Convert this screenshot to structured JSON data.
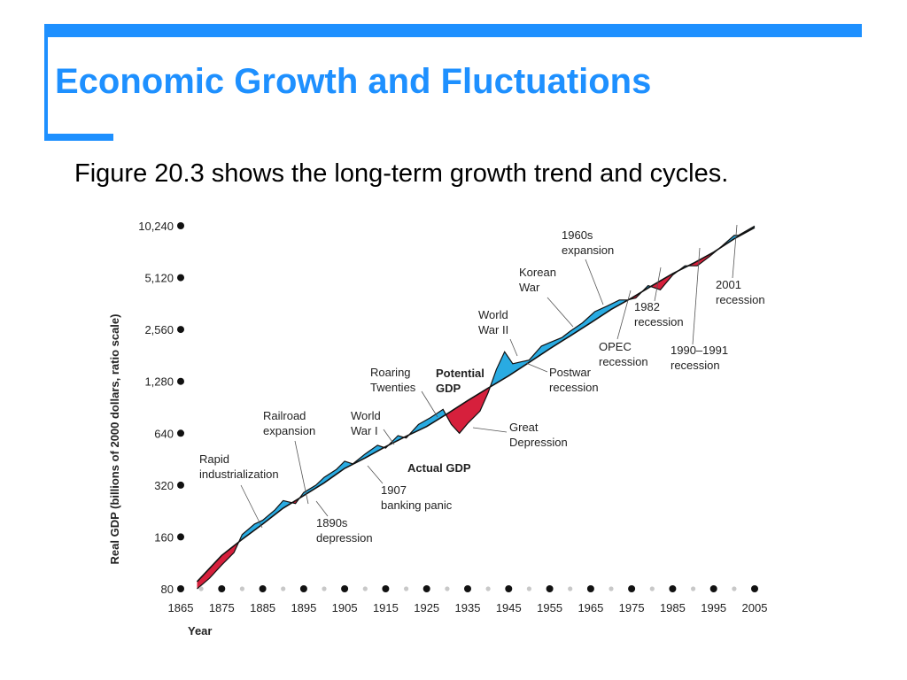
{
  "slide": {
    "title": "Economic Growth and Fluctuations",
    "subtitle": "Figure 20.3 shows the long-term growth trend and cycles.",
    "accent_color": "#1e90ff"
  },
  "chart_data": {
    "type": "line",
    "title": "",
    "xlabel": "Year",
    "ylabel": "Real GDP (billions of 2000 dollars, ratio scale)",
    "y_scale": "log2",
    "ylim": [
      80,
      10240
    ],
    "xlim": [
      1865,
      2005
    ],
    "y_ticks": [
      80,
      160,
      320,
      640,
      1280,
      2560,
      5120,
      10240
    ],
    "y_tick_labels": [
      "80",
      "160",
      "320",
      "640",
      "1,280",
      "2,560",
      "5,120",
      "10,240"
    ],
    "x_ticks": [
      1865,
      1875,
      1885,
      1895,
      1905,
      1915,
      1925,
      1935,
      1945,
      1955,
      1965,
      1975,
      1985,
      1995,
      2005
    ],
    "x_tick_labels": [
      "1865",
      "1875",
      "1885",
      "1895",
      "1905",
      "1915",
      "1925",
      "1935",
      "1945",
      "1955",
      "1965",
      "1975",
      "1985",
      "1995",
      "2005"
    ],
    "grid": false,
    "colors": {
      "potential": "#111111",
      "actual": "#111111",
      "expansion_fill": "#29abe2",
      "recession_fill": "#d6203c"
    },
    "series": [
      {
        "name": "Potential GDP",
        "x": [
          1869,
          1875,
          1880,
          1885,
          1890,
          1895,
          1900,
          1905,
          1910,
          1915,
          1920,
          1925,
          1930,
          1935,
          1940,
          1945,
          1950,
          1955,
          1960,
          1965,
          1970,
          1975,
          1980,
          1985,
          1990,
          1995,
          2000,
          2005
        ],
        "y": [
          88,
          125,
          155,
          190,
          235,
          278,
          330,
          400,
          460,
          535,
          615,
          700,
          830,
          990,
          1170,
          1380,
          1650,
          1980,
          2350,
          2800,
          3350,
          3900,
          4600,
          5400,
          6200,
          7200,
          8600,
          10000
        ]
      },
      {
        "name": "Actual GDP",
        "x": [
          1869,
          1872,
          1875,
          1878,
          1880,
          1883,
          1885,
          1888,
          1890,
          1893,
          1895,
          1898,
          1900,
          1903,
          1905,
          1907,
          1910,
          1913,
          1915,
          1918,
          1920,
          1923,
          1926,
          1929,
          1931,
          1933,
          1935,
          1938,
          1940,
          1942,
          1944,
          1946,
          1948,
          1950,
          1953,
          1955,
          1958,
          1960,
          1963,
          1966,
          1969,
          1972,
          1974,
          1976,
          1979,
          1982,
          1985,
          1988,
          1991,
          1994,
          1997,
          2000,
          2001,
          2005
        ],
        "y": [
          80,
          92,
          110,
          130,
          165,
          190,
          200,
          230,
          260,
          250,
          290,
          320,
          355,
          395,
          440,
          425,
          485,
          545,
          525,
          620,
          600,
          720,
          790,
          880,
          720,
          640,
          730,
          860,
          1100,
          1500,
          1900,
          1620,
          1660,
          1700,
          2050,
          2150,
          2300,
          2500,
          2800,
          3250,
          3500,
          3800,
          3800,
          3900,
          4600,
          4350,
          5300,
          6000,
          6000,
          6800,
          7800,
          9000,
          9000,
          10200
        ]
      }
    ],
    "chart_labels": {
      "potential_gdp": "Potential GDP",
      "actual_gdp": "Actual GDP"
    },
    "annotations": [
      {
        "text": [
          "Rapid",
          "industrialization"
        ],
        "year": 1880
      },
      {
        "text": [
          "Railroad",
          "expansion"
        ],
        "year": 1892
      },
      {
        "text": [
          "1890s",
          "depression"
        ],
        "year": 1894
      },
      {
        "text": [
          "World",
          "War I"
        ],
        "year": 1918
      },
      {
        "text": [
          "1907",
          "banking panic"
        ],
        "year": 1907
      },
      {
        "text": [
          "Roaring",
          "Twenties"
        ],
        "year": 1926
      },
      {
        "text": [
          "Great",
          "Depression"
        ],
        "year": 1933
      },
      {
        "text": [
          "World",
          "War II"
        ],
        "year": 1943
      },
      {
        "text": [
          "Postwar",
          "recession"
        ],
        "year": 1947
      },
      {
        "text": [
          "Korean",
          "War"
        ],
        "year": 1953
      },
      {
        "text": [
          "1960s",
          "expansion"
        ],
        "year": 1967
      },
      {
        "text": [
          "OPEC",
          "recession"
        ],
        "year": 1975
      },
      {
        "text": [
          "1982",
          "recession"
        ],
        "year": 1982
      },
      {
        "text": [
          "1990–1991",
          "recession"
        ],
        "year": 1991
      },
      {
        "text": [
          "2001",
          "recession"
        ],
        "year": 2001
      }
    ]
  }
}
